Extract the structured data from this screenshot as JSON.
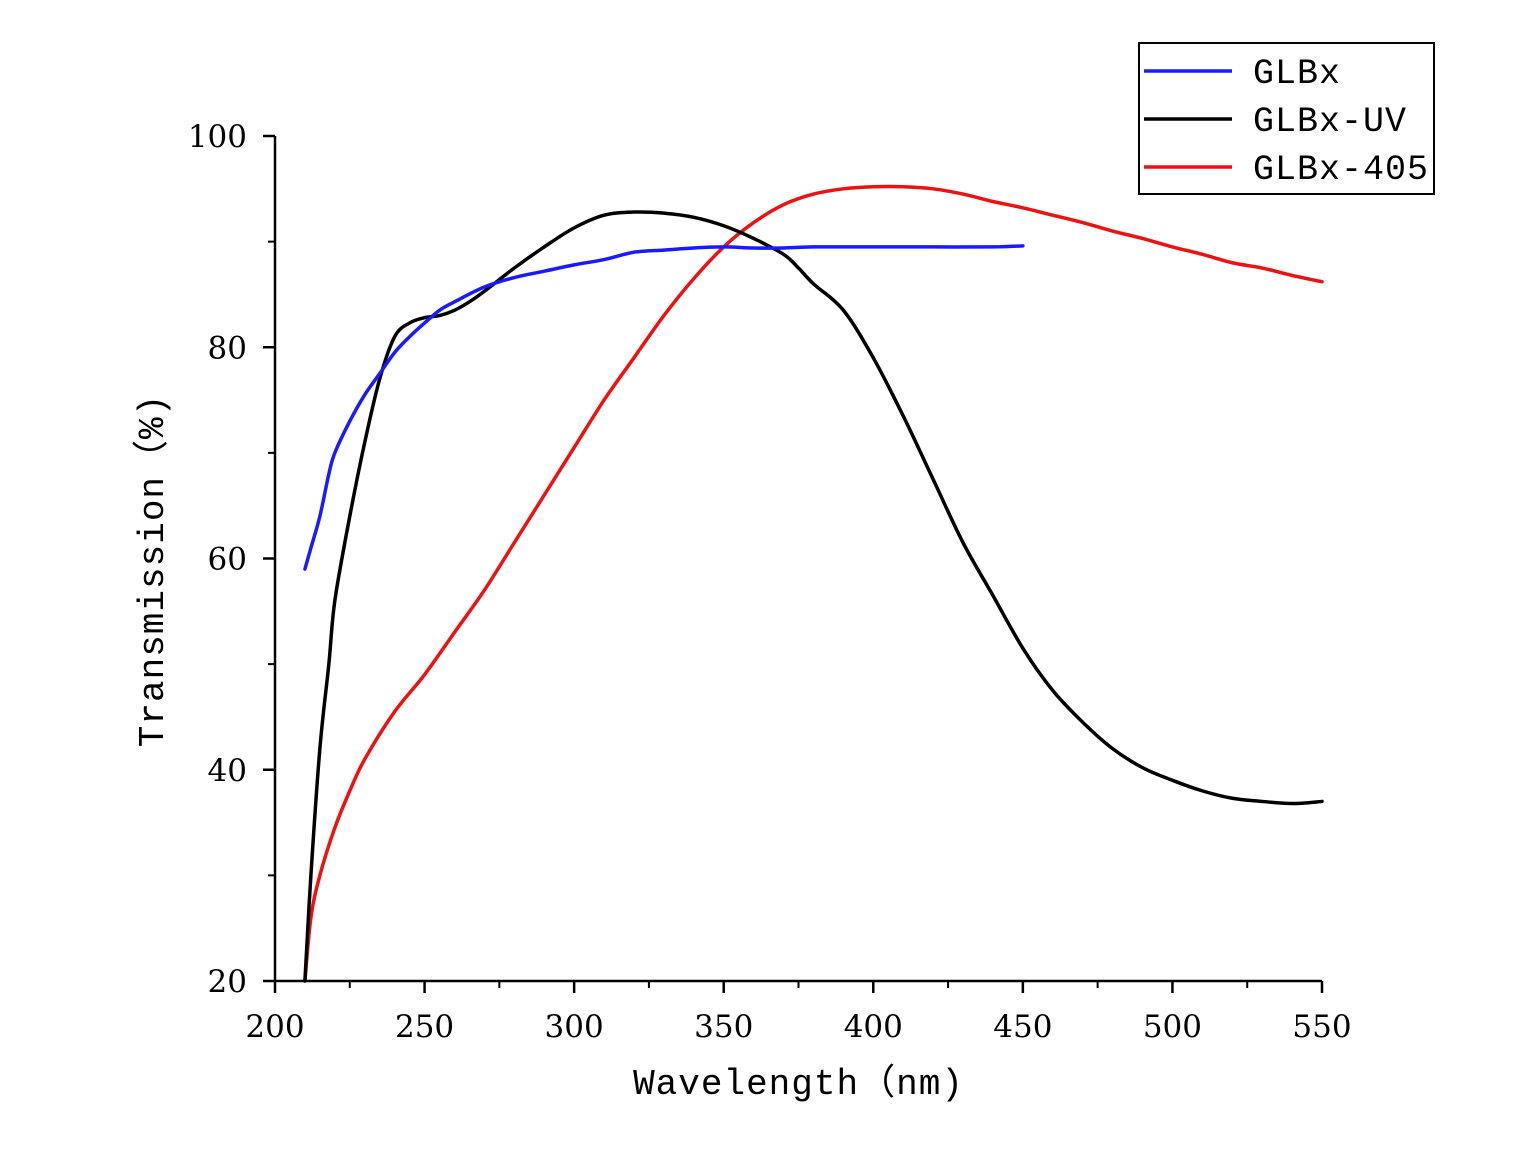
{
  "chart_data": {
    "type": "line",
    "title": "",
    "xlabel": "Wavelength（nm)",
    "ylabel": "Transmission（%)",
    "xlim": [
      200,
      550
    ],
    "ylim": [
      20,
      100
    ],
    "x_ticks": [
      "200",
      "250",
      "300",
      "350",
      "400",
      "450",
      "500",
      "550"
    ],
    "y_ticks": [
      "20",
      "40",
      "60",
      "80",
      "100"
    ],
    "grid": false,
    "legend_position": "top-right",
    "series": [
      {
        "name": "GLBx",
        "color": "#1a1aff",
        "x": [
          210,
          212,
          215,
          218,
          220,
          225,
          230,
          235,
          240,
          245,
          250,
          255,
          260,
          270,
          280,
          290,
          300,
          310,
          320,
          330,
          340,
          350,
          360,
          370,
          380,
          400,
          420,
          440,
          450
        ],
        "y": [
          59,
          61,
          64,
          68,
          70,
          73,
          75.5,
          77.5,
          79.5,
          81,
          82.3,
          83.5,
          84.3,
          85.7,
          86.6,
          87.2,
          87.8,
          88.3,
          89.0,
          89.2,
          89.4,
          89.5,
          89.4,
          89.4,
          89.5,
          89.5,
          89.5,
          89.5,
          89.6
        ]
      },
      {
        "name": "GLBx-UV",
        "color": "#000000",
        "x": [
          210,
          212,
          215,
          218,
          220,
          225,
          230,
          235,
          240,
          245,
          250,
          255,
          260,
          265,
          270,
          280,
          290,
          300,
          310,
          320,
          330,
          340,
          350,
          360,
          370,
          375,
          380,
          390,
          400,
          410,
          420,
          430,
          440,
          450,
          460,
          470,
          480,
          490,
          500,
          510,
          520,
          530,
          540,
          550
        ],
        "y": [
          20,
          30,
          42,
          50,
          56,
          64,
          71,
          77,
          81,
          82.3,
          82.8,
          83.0,
          83.5,
          84.3,
          85.3,
          87.5,
          89.5,
          91.3,
          92.5,
          92.8,
          92.7,
          92.3,
          91.5,
          90.3,
          88.8,
          87.5,
          86.0,
          83.5,
          79,
          73.5,
          67.5,
          61.5,
          56.5,
          51.5,
          47.5,
          44.5,
          42,
          40.2,
          39,
          38,
          37.3,
          37.0,
          36.8,
          37.0
        ]
      },
      {
        "name": "GLBx-405",
        "color": "#ee1111",
        "x": [
          210,
          212,
          215,
          220,
          225,
          230,
          240,
          250,
          260,
          270,
          280,
          290,
          300,
          310,
          320,
          330,
          340,
          350,
          360,
          370,
          380,
          390,
          400,
          410,
          420,
          430,
          440,
          450,
          460,
          470,
          480,
          490,
          500,
          510,
          520,
          530,
          540,
          550
        ],
        "y": [
          20,
          26,
          30,
          34.5,
          38,
          41,
          45.5,
          49,
          53,
          57,
          61.5,
          66,
          70.5,
          75,
          79,
          83,
          86.5,
          89.5,
          91.8,
          93.5,
          94.5,
          95.0,
          95.2,
          95.2,
          95.0,
          94.5,
          93.8,
          93.2,
          92.5,
          91.8,
          91.0,
          90.3,
          89.5,
          88.8,
          88.0,
          87.5,
          86.8,
          86.2
        ]
      }
    ]
  }
}
